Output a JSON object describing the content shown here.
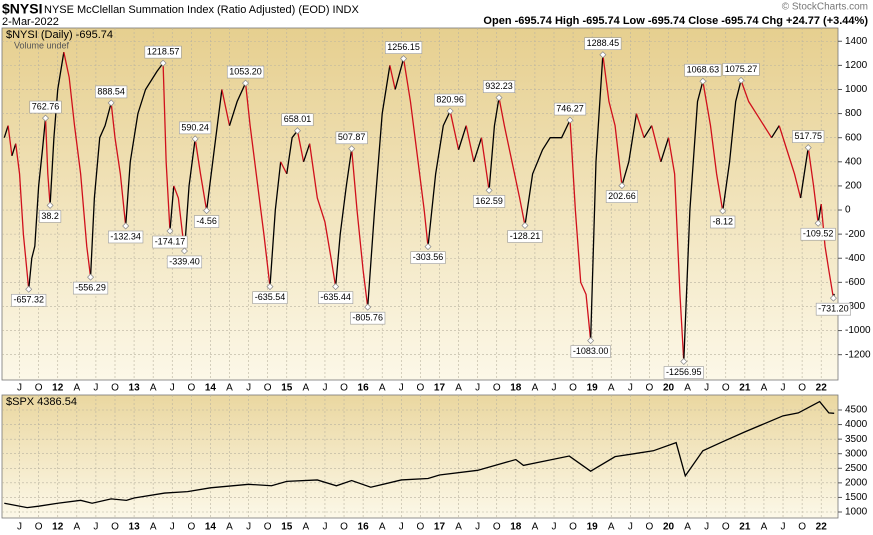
{
  "header": {
    "symbol": "$NYSI",
    "title": "NYSE McClellan Summation Index (Ratio Adjusted) (EOD)  INDX",
    "date": "2-Mar-2022",
    "quote": "Open -695.74  High -695.74  Low -695.74  Close -695.74  Chg +24.77 (+3.44%)",
    "copyright": "© StockCharts.com"
  },
  "chart_data": [
    {
      "type": "line",
      "subtitle": "Volume undef",
      "up_color": "#000000",
      "down_color": "#d0101c",
      "grid": true,
      "xlim": [
        2011.27,
        2022.22
      ],
      "ylim": [
        -1410,
        1510
      ],
      "yticks": [
        -1200,
        -1000,
        -800,
        -600,
        -400,
        -200,
        0,
        200,
        400,
        600,
        800,
        1000,
        1200,
        1400
      ],
      "xticks": [
        {
          "value": 2011.5,
          "label": "J"
        },
        {
          "value": 2011.75,
          "label": "O"
        },
        {
          "value": 2012,
          "label": "12"
        },
        {
          "value": 2012.25,
          "label": "A"
        },
        {
          "value": 2012.5,
          "label": "J"
        },
        {
          "value": 2012.75,
          "label": "O"
        },
        {
          "value": 2013,
          "label": "13"
        },
        {
          "value": 2013.25,
          "label": "A"
        },
        {
          "value": 2013.5,
          "label": "J"
        },
        {
          "value": 2013.75,
          "label": "O"
        },
        {
          "value": 2014,
          "label": "14"
        },
        {
          "value": 2014.25,
          "label": "A"
        },
        {
          "value": 2014.5,
          "label": "J"
        },
        {
          "value": 2014.75,
          "label": "O"
        },
        {
          "value": 2015,
          "label": "15"
        },
        {
          "value": 2015.25,
          "label": "A"
        },
        {
          "value": 2015.5,
          "label": "J"
        },
        {
          "value": 2015.75,
          "label": "O"
        },
        {
          "value": 2016,
          "label": "16"
        },
        {
          "value": 2016.25,
          "label": "A"
        },
        {
          "value": 2016.5,
          "label": "J"
        },
        {
          "value": 2016.75,
          "label": "O"
        },
        {
          "value": 2017,
          "label": "17"
        },
        {
          "value": 2017.25,
          "label": "A"
        },
        {
          "value": 2017.5,
          "label": "J"
        },
        {
          "value": 2017.75,
          "label": "O"
        },
        {
          "value": 2018,
          "label": "18"
        },
        {
          "value": 2018.25,
          "label": "A"
        },
        {
          "value": 2018.5,
          "label": "J"
        },
        {
          "value": 2018.75,
          "label": "O"
        },
        {
          "value": 2019,
          "label": "19"
        },
        {
          "value": 2019.25,
          "label": "A"
        },
        {
          "value": 2019.5,
          "label": "J"
        },
        {
          "value": 2019.75,
          "label": "O"
        },
        {
          "value": 2020,
          "label": "20"
        },
        {
          "value": 2020.25,
          "label": "A"
        },
        {
          "value": 2020.5,
          "label": "J"
        },
        {
          "value": 2020.75,
          "label": "O"
        },
        {
          "value": 2021,
          "label": "21"
        },
        {
          "value": 2021.25,
          "label": "A"
        },
        {
          "value": 2021.5,
          "label": "J"
        },
        {
          "value": 2021.75,
          "label": "O"
        },
        {
          "value": 2022,
          "label": "22"
        }
      ],
      "x": [
        2011.3,
        2011.35,
        2011.4,
        2011.45,
        2011.5,
        2011.55,
        2011.62,
        2011.66,
        2011.7,
        2011.75,
        2011.8,
        2011.84,
        2011.87,
        2011.9,
        2011.95,
        2012.0,
        2012.08,
        2012.15,
        2012.22,
        2012.3,
        2012.38,
        2012.43,
        2012.48,
        2012.55,
        2012.62,
        2012.7,
        2012.75,
        2012.82,
        2012.89,
        2012.95,
        2013.05,
        2013.15,
        2013.3,
        2013.38,
        2013.42,
        2013.47,
        2013.52,
        2013.58,
        2013.66,
        2013.72,
        2013.8,
        2013.87,
        2013.95,
        2014.05,
        2014.15,
        2014.25,
        2014.35,
        2014.46,
        2014.52,
        2014.6,
        2014.7,
        2014.78,
        2014.85,
        2014.92,
        2015.0,
        2015.07,
        2015.14,
        2015.22,
        2015.3,
        2015.4,
        2015.5,
        2015.58,
        2015.64,
        2015.7,
        2015.78,
        2015.85,
        2015.92,
        2016.0,
        2016.06,
        2016.15,
        2016.25,
        2016.35,
        2016.42,
        2016.53,
        2016.62,
        2016.72,
        2016.8,
        2016.85,
        2016.95,
        2017.05,
        2017.14,
        2017.25,
        2017.35,
        2017.45,
        2017.55,
        2017.65,
        2017.72,
        2017.78,
        2017.85,
        2017.95,
        2018.05,
        2018.12,
        2018.22,
        2018.35,
        2018.45,
        2018.6,
        2018.71,
        2018.78,
        2018.85,
        2018.92,
        2018.98,
        2019.05,
        2019.14,
        2019.22,
        2019.3,
        2019.39,
        2019.48,
        2019.58,
        2019.68,
        2019.78,
        2019.9,
        2020.0,
        2020.08,
        2020.15,
        2020.2,
        2020.28,
        2020.38,
        2020.45,
        2020.55,
        2020.63,
        2020.71,
        2020.8,
        2020.88,
        2020.95,
        2021.05,
        2021.15,
        2021.25,
        2021.35,
        2021.45,
        2021.55,
        2021.65,
        2021.73,
        2021.83,
        2021.9,
        2021.96,
        2022.0,
        2022.05,
        2022.1,
        2022.16,
        2022.17
      ],
      "series": [
        {
          "name": "$NYSI (Daily) -695.74",
          "values": [
            600,
            700,
            450,
            550,
            300,
            -200,
            -657.32,
            -400,
            -300,
            200,
            500,
            762.76,
            300,
            38.2,
            600,
            1000,
            1310,
            1100,
            700,
            300,
            -300,
            -556.29,
            100,
            600,
            700,
            888.54,
            600,
            300,
            -132.34,
            400,
            800,
            1000,
            1150,
            1218.57,
            400,
            -174.17,
            200,
            100,
            -339.4,
            200,
            590.24,
            300,
            -4.56,
            500,
            1000,
            700,
            900,
            1053.2,
            700,
            300,
            -200,
            -635.54,
            0,
            400,
            300,
            600,
            658.01,
            400,
            550,
            100,
            -100,
            -400,
            -635.44,
            -200,
            200,
            507.87,
            0,
            -500,
            -805.76,
            0,
            800,
            1200,
            1000,
            1256.15,
            900,
            400,
            0,
            -303.56,
            300,
            700,
            820.96,
            500,
            700,
            400,
            600,
            162.59,
            700,
            932.23,
            700,
            400,
            100,
            -128.21,
            300,
            500,
            600,
            600,
            746.27,
            0,
            -600,
            -700,
            -1083,
            400,
            1288.45,
            900,
            700,
            202.66,
            400,
            800,
            600,
            700,
            400,
            600,
            300,
            -700,
            -1256.95,
            0,
            900,
            1068.63,
            700,
            300,
            -8.12,
            400,
            900,
            1075.27,
            900,
            800,
            700,
            600,
            700,
            500,
            300,
            100,
            517.75,
            200,
            -109.52,
            50,
            -300,
            -500,
            -731.2,
            -695.74
          ]
        }
      ],
      "annotations": [
        {
          "x": 2011.62,
          "value": -657.32
        },
        {
          "x": 2011.84,
          "value": 762.76
        },
        {
          "x": 2011.9,
          "value": 38.2
        },
        {
          "x": 2012.43,
          "value": -556.29
        },
        {
          "x": 2012.7,
          "value": 888.54
        },
        {
          "x": 2012.89,
          "value": -132.34
        },
        {
          "x": 2013.38,
          "value": 1218.57
        },
        {
          "x": 2013.47,
          "value": -174.17
        },
        {
          "x": 2013.66,
          "value": -339.4,
          "label": "-339.40"
        },
        {
          "x": 2013.8,
          "value": 590.24
        },
        {
          "x": 2013.95,
          "value": -4.56
        },
        {
          "x": 2014.46,
          "value": 1053.2,
          "label": "1053.20"
        },
        {
          "x": 2014.78,
          "value": -635.54
        },
        {
          "x": 2015.14,
          "value": 658.01
        },
        {
          "x": 2015.64,
          "value": -635.44
        },
        {
          "x": 2015.85,
          "value": 507.87
        },
        {
          "x": 2016.06,
          "value": -805.76
        },
        {
          "x": 2016.53,
          "value": 1256.15
        },
        {
          "x": 2016.85,
          "value": -303.56
        },
        {
          "x": 2017.14,
          "value": 820.96
        },
        {
          "x": 2017.65,
          "value": 162.59
        },
        {
          "x": 2017.78,
          "value": 932.23
        },
        {
          "x": 2018.12,
          "value": -128.21
        },
        {
          "x": 2018.71,
          "value": 746.27
        },
        {
          "x": 2018.98,
          "value": -1083,
          "label": "-1083.00"
        },
        {
          "x": 2019.14,
          "value": 1288.45
        },
        {
          "x": 2019.39,
          "value": 202.66
        },
        {
          "x": 2020.2,
          "value": -1256.95
        },
        {
          "x": 2020.45,
          "value": 1068.63
        },
        {
          "x": 2020.71,
          "value": -8.12
        },
        {
          "x": 2020.95,
          "value": 1075.27
        },
        {
          "x": 2021.83,
          "value": 517.75
        },
        {
          "x": 2021.96,
          "value": -109.52
        },
        {
          "x": 2022.16,
          "value": -731.2,
          "label": "-731.20"
        }
      ]
    },
    {
      "type": "line",
      "grid": true,
      "xlim": [
        2011.27,
        2022.22
      ],
      "ylim": [
        794,
        5015
      ],
      "yticks": [
        1000,
        1500,
        2000,
        2500,
        3000,
        3500,
        4000,
        4500
      ],
      "xticks": [
        {
          "value": 2011.5,
          "label": "J"
        },
        {
          "value": 2011.75,
          "label": "O"
        },
        {
          "value": 2012,
          "label": "12"
        },
        {
          "value": 2012.25,
          "label": "A"
        },
        {
          "value": 2012.5,
          "label": "J"
        },
        {
          "value": 2012.75,
          "label": "O"
        },
        {
          "value": 2013,
          "label": "13"
        },
        {
          "value": 2013.25,
          "label": "A"
        },
        {
          "value": 2013.5,
          "label": "J"
        },
        {
          "value": 2013.75,
          "label": "O"
        },
        {
          "value": 2014,
          "label": "14"
        },
        {
          "value": 2014.25,
          "label": "A"
        },
        {
          "value": 2014.5,
          "label": "J"
        },
        {
          "value": 2014.75,
          "label": "O"
        },
        {
          "value": 2015,
          "label": "15"
        },
        {
          "value": 2015.25,
          "label": "A"
        },
        {
          "value": 2015.5,
          "label": "J"
        },
        {
          "value": 2015.75,
          "label": "O"
        },
        {
          "value": 2016,
          "label": "16"
        },
        {
          "value": 2016.25,
          "label": "A"
        },
        {
          "value": 2016.5,
          "label": "J"
        },
        {
          "value": 2016.75,
          "label": "O"
        },
        {
          "value": 2017,
          "label": "17"
        },
        {
          "value": 2017.25,
          "label": "A"
        },
        {
          "value": 2017.5,
          "label": "J"
        },
        {
          "value": 2017.75,
          "label": "O"
        },
        {
          "value": 2018,
          "label": "18"
        },
        {
          "value": 2018.25,
          "label": "A"
        },
        {
          "value": 2018.5,
          "label": "J"
        },
        {
          "value": 2018.75,
          "label": "O"
        },
        {
          "value": 2019,
          "label": "19"
        },
        {
          "value": 2019.25,
          "label": "A"
        },
        {
          "value": 2019.5,
          "label": "J"
        },
        {
          "value": 2019.75,
          "label": "O"
        },
        {
          "value": 2020,
          "label": "20"
        },
        {
          "value": 2020.25,
          "label": "A"
        },
        {
          "value": 2020.5,
          "label": "J"
        },
        {
          "value": 2020.75,
          "label": "O"
        },
        {
          "value": 2021,
          "label": "21"
        },
        {
          "value": 2021.25,
          "label": "A"
        },
        {
          "value": 2021.5,
          "label": "J"
        },
        {
          "value": 2021.75,
          "label": "O"
        },
        {
          "value": 2022,
          "label": "22"
        }
      ],
      "x": [
        2011.3,
        2011.6,
        2011.75,
        2012.0,
        2012.3,
        2012.45,
        2012.7,
        2012.9,
        2013.0,
        2013.4,
        2013.7,
        2014.0,
        2014.5,
        2014.8,
        2015.0,
        2015.4,
        2015.65,
        2015.85,
        2016.1,
        2016.5,
        2016.85,
        2017.0,
        2017.5,
        2018.0,
        2018.1,
        2018.7,
        2018.98,
        2019.3,
        2019.8,
        2020.1,
        2020.22,
        2020.45,
        2020.7,
        2021.0,
        2021.5,
        2021.7,
        2021.98,
        2022.1,
        2022.17
      ],
      "series": [
        {
          "name": "$SPX 4386.54",
          "color": "#000000",
          "values": [
            1300,
            1150,
            1200,
            1300,
            1400,
            1300,
            1450,
            1400,
            1480,
            1650,
            1700,
            1830,
            1950,
            1900,
            2050,
            2100,
            1900,
            2080,
            1850,
            2100,
            2150,
            2270,
            2430,
            2800,
            2600,
            2920,
            2400,
            2900,
            3100,
            3380,
            2240,
            3100,
            3400,
            3750,
            4300,
            4400,
            4790,
            4400,
            4386.54
          ]
        }
      ]
    }
  ]
}
